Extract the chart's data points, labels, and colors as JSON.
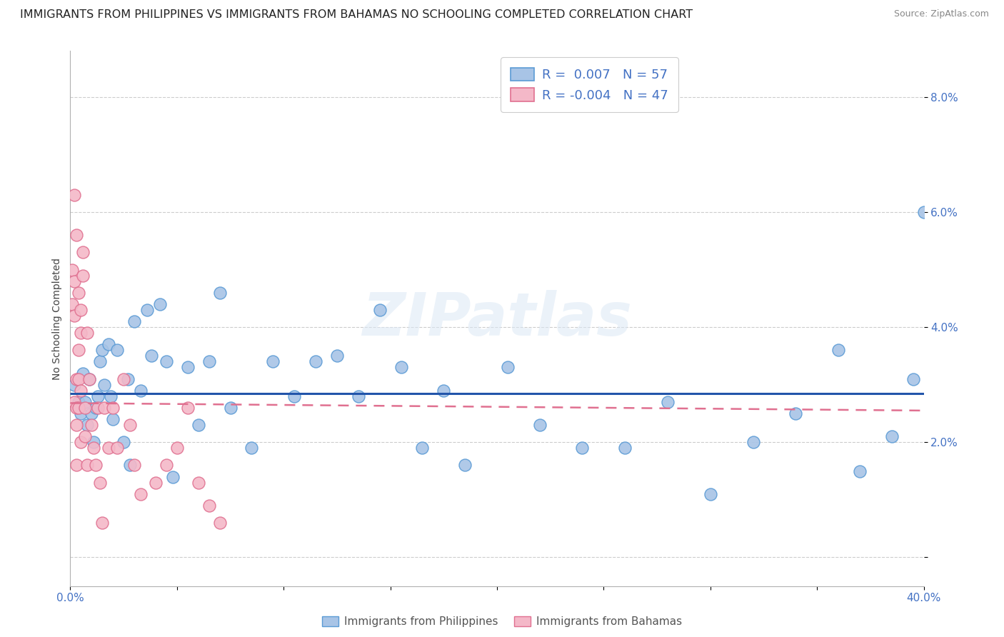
{
  "title": "IMMIGRANTS FROM PHILIPPINES VS IMMIGRANTS FROM BAHAMAS NO SCHOOLING COMPLETED CORRELATION CHART",
  "source": "Source: ZipAtlas.com",
  "ylabel": "No Schooling Completed",
  "watermark": "ZIPatlas",
  "xlim": [
    0.0,
    0.4
  ],
  "ylim": [
    -0.005,
    0.088
  ],
  "yticks": [
    0.0,
    0.02,
    0.04,
    0.06,
    0.08
  ],
  "ytick_labels": [
    "",
    "2.0%",
    "4.0%",
    "6.0%",
    "8.0%"
  ],
  "xticks": [
    0.0,
    0.05,
    0.1,
    0.15,
    0.2,
    0.25,
    0.3,
    0.35,
    0.4
  ],
  "blue_R": 0.007,
  "blue_N": 57,
  "pink_R": -0.004,
  "pink_N": 47,
  "blue_fill": "#a8c4e6",
  "blue_edge": "#5b9bd5",
  "pink_fill": "#f4b8c8",
  "pink_edge": "#e07090",
  "blue_line_color": "#2255aa",
  "pink_line_color": "#cc4466",
  "blue_scatter_x": [
    0.002,
    0.004,
    0.005,
    0.006,
    0.007,
    0.008,
    0.009,
    0.01,
    0.011,
    0.012,
    0.013,
    0.014,
    0.015,
    0.016,
    0.018,
    0.019,
    0.02,
    0.022,
    0.025,
    0.027,
    0.028,
    0.03,
    0.033,
    0.036,
    0.038,
    0.042,
    0.045,
    0.048,
    0.055,
    0.06,
    0.065,
    0.07,
    0.075,
    0.085,
    0.095,
    0.105,
    0.115,
    0.125,
    0.135,
    0.145,
    0.155,
    0.165,
    0.175,
    0.185,
    0.205,
    0.22,
    0.24,
    0.26,
    0.28,
    0.3,
    0.32,
    0.34,
    0.36,
    0.37,
    0.385,
    0.395,
    0.4
  ],
  "blue_scatter_y": [
    0.03,
    0.027,
    0.025,
    0.032,
    0.027,
    0.023,
    0.031,
    0.025,
    0.02,
    0.026,
    0.028,
    0.034,
    0.036,
    0.03,
    0.037,
    0.028,
    0.024,
    0.036,
    0.02,
    0.031,
    0.016,
    0.041,
    0.029,
    0.043,
    0.035,
    0.044,
    0.034,
    0.014,
    0.033,
    0.023,
    0.034,
    0.046,
    0.026,
    0.019,
    0.034,
    0.028,
    0.034,
    0.035,
    0.028,
    0.043,
    0.033,
    0.019,
    0.029,
    0.016,
    0.033,
    0.023,
    0.019,
    0.019,
    0.027,
    0.011,
    0.02,
    0.025,
    0.036,
    0.015,
    0.021,
    0.031,
    0.06
  ],
  "pink_scatter_x": [
    0.001,
    0.001,
    0.002,
    0.002,
    0.002,
    0.002,
    0.003,
    0.003,
    0.003,
    0.003,
    0.003,
    0.004,
    0.004,
    0.004,
    0.004,
    0.005,
    0.005,
    0.005,
    0.005,
    0.006,
    0.006,
    0.007,
    0.007,
    0.008,
    0.008,
    0.009,
    0.01,
    0.011,
    0.012,
    0.013,
    0.014,
    0.015,
    0.016,
    0.018,
    0.02,
    0.022,
    0.025,
    0.028,
    0.03,
    0.033,
    0.04,
    0.045,
    0.05,
    0.055,
    0.06,
    0.065,
    0.07
  ],
  "pink_scatter_y": [
    0.05,
    0.044,
    0.063,
    0.048,
    0.042,
    0.027,
    0.056,
    0.031,
    0.026,
    0.023,
    0.016,
    0.046,
    0.036,
    0.031,
    0.026,
    0.043,
    0.039,
    0.029,
    0.02,
    0.053,
    0.049,
    0.026,
    0.021,
    0.016,
    0.039,
    0.031,
    0.023,
    0.019,
    0.016,
    0.026,
    0.013,
    0.006,
    0.026,
    0.019,
    0.026,
    0.019,
    0.031,
    0.023,
    0.016,
    0.011,
    0.013,
    0.016,
    0.019,
    0.026,
    0.013,
    0.009,
    0.006
  ],
  "blue_trend_start_y": 0.0285,
  "blue_trend_end_y": 0.0285,
  "pink_trend_start_y": 0.0268,
  "pink_trend_end_y": 0.0255,
  "grid_color": "#cccccc",
  "tick_color": "#4472c4",
  "background_color": "#ffffff",
  "title_fontsize": 11.5,
  "axis_label_fontsize": 10,
  "tick_fontsize": 11,
  "legend_fontsize": 13,
  "source_fontsize": 9
}
